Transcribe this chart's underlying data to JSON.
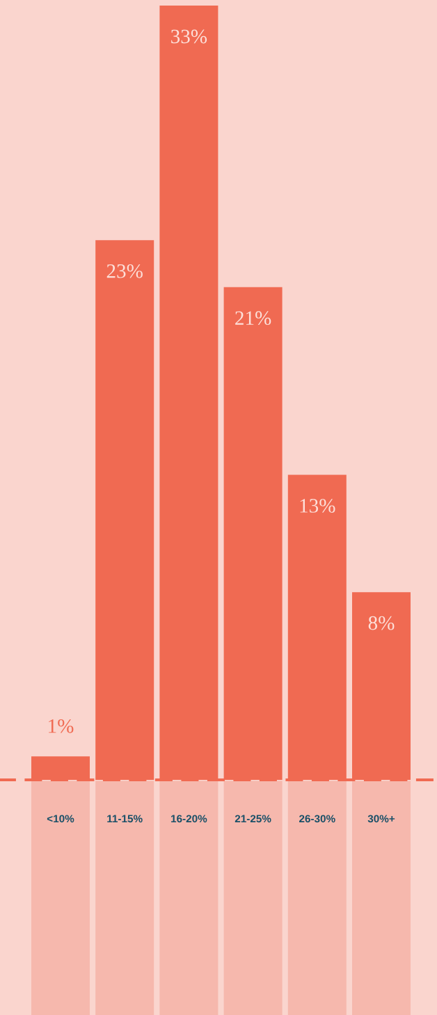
{
  "chart_data": {
    "type": "bar",
    "categories": [
      "<10%",
      "11-15%",
      "16-20%",
      "21-25%",
      "26-30%",
      "30%+"
    ],
    "values": [
      1,
      23,
      33,
      21,
      13,
      8
    ],
    "value_labels": [
      "1%",
      "23%",
      "33%",
      "21%",
      "13%",
      "8%"
    ],
    "color": "#f06a52",
    "grid": false,
    "legend": false
  }
}
